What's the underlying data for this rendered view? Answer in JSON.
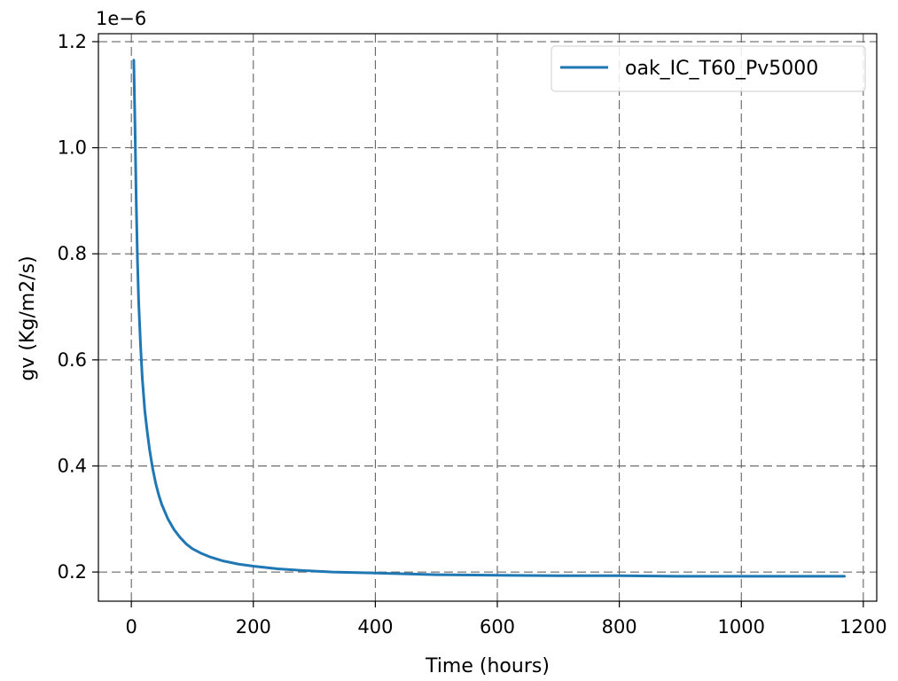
{
  "chart_data": {
    "type": "line",
    "title": "",
    "xlabel": "Time (hours)",
    "ylabel": "gv (Kg/m2/s)",
    "y_offset_label": "1e−6",
    "y_scale_factor": 1e-06,
    "xlim": [
      -54,
      1222
    ],
    "ylim": [
      1.45e-07,
      1.215e-06
    ],
    "xticks": [
      0,
      200,
      400,
      600,
      800,
      1000,
      1200
    ],
    "xtick_labels": [
      "0",
      "200",
      "400",
      "600",
      "800",
      "1000",
      "1200"
    ],
    "yticks": [
      2e-07,
      4e-07,
      6e-07,
      8e-07,
      1e-06,
      1.2e-06
    ],
    "ytick_labels": [
      "0.2",
      "0.4",
      "0.6",
      "0.8",
      "1.0",
      "1.2"
    ],
    "grid": true,
    "legend_position": "top-right",
    "series": [
      {
        "name": "oak_IC_T60_Pv5000",
        "color": "#1f77b4",
        "x": [
          4,
          6,
          8,
          10,
          12,
          15,
          18,
          22,
          26,
          30,
          35,
          40,
          45,
          50,
          60,
          70,
          80,
          90,
          100,
          115,
          130,
          150,
          175,
          200,
          240,
          280,
          330,
          400,
          500,
          600,
          700,
          800,
          900,
          1000,
          1100,
          1169
        ],
        "y": [
          1.165e-06,
          1.04e-06,
          9e-07,
          7.9e-07,
          7.1e-07,
          6.3e-07,
          5.65e-07,
          5.05e-07,
          4.65e-07,
          4.3e-07,
          3.95e-07,
          3.67e-07,
          3.45e-07,
          3.27e-07,
          3e-07,
          2.8e-07,
          2.65e-07,
          2.53e-07,
          2.44e-07,
          2.35e-07,
          2.28e-07,
          2.21e-07,
          2.15e-07,
          2.11e-07,
          2.06e-07,
          2.03e-07,
          2e-07,
          1.98e-07,
          1.95e-07,
          1.94e-07,
          1.93e-07,
          1.93e-07,
          1.92e-07,
          1.92e-07,
          1.92e-07,
          1.92e-07
        ]
      }
    ]
  }
}
